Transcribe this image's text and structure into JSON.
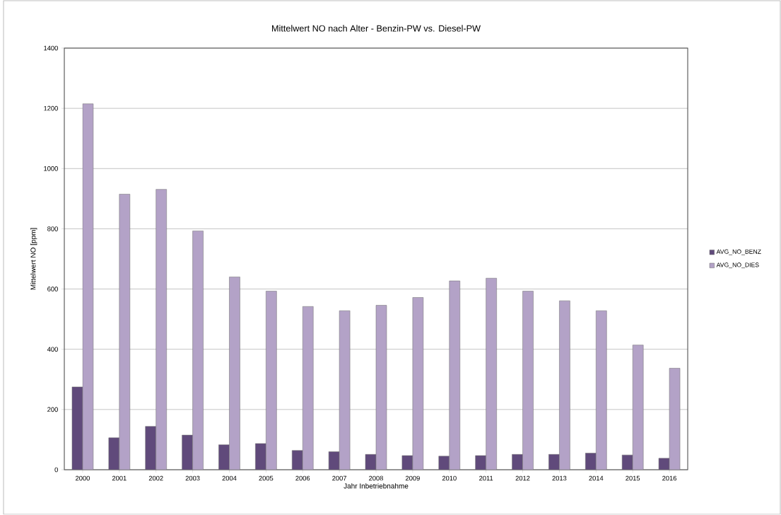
{
  "chart_data": {
    "type": "bar",
    "title": "Mittelwert NO nach Alter - Benzin-PW vs. Diesel-PW",
    "xlabel": "Jahr Inbetriebnahme",
    "ylabel": "Mittelwert NO [ppm]",
    "categories": [
      "2000",
      "2001",
      "2002",
      "2003",
      "2004",
      "2005",
      "2006",
      "2007",
      "2008",
      "2009",
      "2010",
      "2011",
      "2012",
      "2013",
      "2014",
      "2015",
      "2016"
    ],
    "series": [
      {
        "name": "AVG_NO_BENZ",
        "color": "#604a7b",
        "values": [
          275,
          106,
          144,
          115,
          83,
          87,
          64,
          60,
          51,
          47,
          45,
          47,
          51,
          51,
          55,
          49,
          38
        ]
      },
      {
        "name": "AVG_NO_DIES",
        "color": "#b3a2c7",
        "values": [
          1215,
          915,
          931,
          793,
          640,
          593,
          542,
          528,
          546,
          572,
          627,
          636,
          593,
          561,
          528,
          414,
          337
        ]
      }
    ],
    "ylim": [
      0,
      1400
    ],
    "yticks": [
      0,
      200,
      400,
      600,
      800,
      1000,
      1200,
      1400
    ],
    "grid": "y",
    "legend": "right"
  }
}
